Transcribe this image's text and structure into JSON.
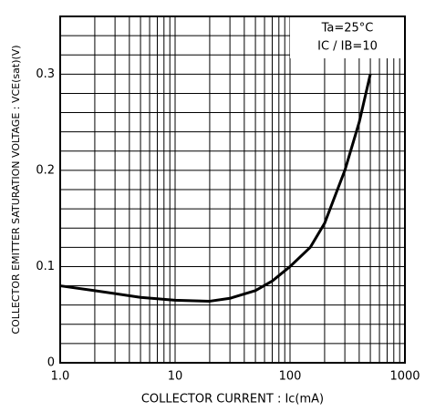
{
  "chart_data": {
    "type": "line",
    "xlabel": "COLLECTOR CURRENT : Ic(mA)",
    "ylabel": "COLLECTOR EMITTER SATURATION VOLTAGE : VCE(sat)(V)",
    "annotations": [
      "Ta=25°C",
      "IC / IB=10"
    ],
    "xscale": "log",
    "grid": true,
    "xlim": [
      1,
      1000
    ],
    "ylim": [
      0,
      0.36
    ],
    "xticks": [
      {
        "value": 1,
        "label": "1.0"
      },
      10,
      100,
      1000
    ],
    "yticks": [
      0,
      0.1,
      0.2,
      0.3
    ],
    "x": [
      1,
      2,
      5,
      10,
      20,
      30,
      50,
      70,
      100,
      150,
      200,
      300,
      400,
      500
    ],
    "series": [
      {
        "color": "#000000",
        "values": [
          0.08,
          0.075,
          0.068,
          0.065,
          0.064,
          0.067,
          0.075,
          0.085,
          0.1,
          0.12,
          0.145,
          0.2,
          0.25,
          0.3
        ]
      }
    ]
  }
}
